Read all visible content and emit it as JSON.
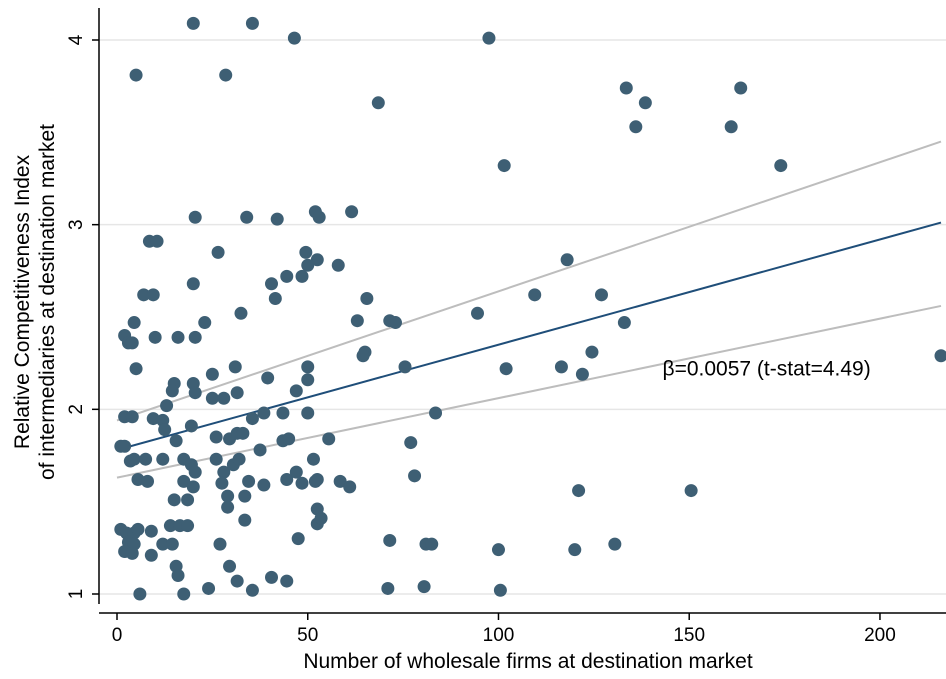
{
  "chart_data": {
    "type": "scatter",
    "title": "",
    "xlabel": "Number of wholesale firms at destination market",
    "ylabel_lines": [
      "Relative Competitiveness Index",
      "of intermediaries at destination market"
    ],
    "xlim": [
      0,
      216
    ],
    "ylim": [
      1,
      4.1
    ],
    "x_ticks": [
      0,
      50,
      100,
      150,
      200
    ],
    "y_ticks": [
      1,
      2,
      3,
      4
    ],
    "grid": "horizontal",
    "colors": {
      "points": "#3e5f74",
      "fit_line": "#1f4e79",
      "ci_lines": "#bdbdbd",
      "gridlines": "#e6e6e6",
      "axis": "#000000"
    },
    "annotation": {
      "text": "β=0.0057 (t-stat=4.49)",
      "x": 143,
      "y": 2.22
    },
    "fit": {
      "intercept": 1.78,
      "slope": 0.0057,
      "x_range": [
        0,
        216
      ]
    },
    "confidence_band": {
      "upper": [
        [
          0,
          1.94
        ],
        [
          216,
          3.45
        ]
      ],
      "lower": [
        [
          0,
          1.63
        ],
        [
          216,
          2.56
        ]
      ]
    },
    "points": [
      [
        20,
        4.09
      ],
      [
        35.5,
        4.09
      ],
      [
        46.5,
        4.01
      ],
      [
        97.5,
        4.01
      ],
      [
        5,
        3.81
      ],
      [
        28.5,
        3.81
      ],
      [
        133.5,
        3.74
      ],
      [
        163.5,
        3.74
      ],
      [
        68.5,
        3.66
      ],
      [
        138.5,
        3.66
      ],
      [
        136,
        3.53
      ],
      [
        161,
        3.53
      ],
      [
        101.5,
        3.32
      ],
      [
        174,
        3.32
      ],
      [
        52,
        3.07
      ],
      [
        61.5,
        3.07
      ],
      [
        20.5,
        3.04
      ],
      [
        34,
        3.04
      ],
      [
        42,
        3.03
      ],
      [
        53,
        3.04
      ],
      [
        8.5,
        2.91
      ],
      [
        10.5,
        2.91
      ],
      [
        26.5,
        2.85
      ],
      [
        49.5,
        2.85
      ],
      [
        52.5,
        2.81
      ],
      [
        118,
        2.81
      ],
      [
        58,
        2.78
      ],
      [
        50,
        2.78
      ],
      [
        44.5,
        2.72
      ],
      [
        48.5,
        2.72
      ],
      [
        20,
        2.68
      ],
      [
        40.5,
        2.68
      ],
      [
        7,
        2.62
      ],
      [
        9.5,
        2.62
      ],
      [
        65.5,
        2.6
      ],
      [
        109.5,
        2.62
      ],
      [
        127,
        2.62
      ],
      [
        41.5,
        2.6
      ],
      [
        32.5,
        2.52
      ],
      [
        94.5,
        2.52
      ],
      [
        4.5,
        2.47
      ],
      [
        23,
        2.47
      ],
      [
        63,
        2.48
      ],
      [
        71.5,
        2.48
      ],
      [
        73,
        2.47
      ],
      [
        133,
        2.47
      ],
      [
        2,
        2.4
      ],
      [
        3,
        2.36
      ],
      [
        4,
        2.36
      ],
      [
        10,
        2.39
      ],
      [
        16,
        2.39
      ],
      [
        20.5,
        2.39
      ],
      [
        65,
        2.31
      ],
      [
        64.5,
        2.29
      ],
      [
        124.5,
        2.31
      ],
      [
        216,
        2.29
      ],
      [
        5,
        2.22
      ],
      [
        31,
        2.23
      ],
      [
        50,
        2.23
      ],
      [
        75.5,
        2.23
      ],
      [
        116.5,
        2.23
      ],
      [
        102,
        2.22
      ],
      [
        122,
        2.19
      ],
      [
        15,
        2.14
      ],
      [
        20,
        2.14
      ],
      [
        25,
        2.19
      ],
      [
        39.5,
        2.17
      ],
      [
        50,
        2.16
      ],
      [
        14.5,
        2.1
      ],
      [
        20.5,
        2.09
      ],
      [
        31.5,
        2.09
      ],
      [
        47,
        2.1
      ],
      [
        13,
        2.02
      ],
      [
        25,
        2.06
      ],
      [
        28,
        2.06
      ],
      [
        35.5,
        1.95
      ],
      [
        38.5,
        1.98
      ],
      [
        43.5,
        1.98
      ],
      [
        50,
        1.98
      ],
      [
        83.5,
        1.98
      ],
      [
        2,
        1.96
      ],
      [
        4,
        1.96
      ],
      [
        9.5,
        1.95
      ],
      [
        12,
        1.94
      ],
      [
        12.5,
        1.89
      ],
      [
        15.5,
        1.83
      ],
      [
        19.5,
        1.91
      ],
      [
        26,
        1.85
      ],
      [
        29.5,
        1.84
      ],
      [
        31.5,
        1.87
      ],
      [
        33,
        1.87
      ],
      [
        37.5,
        1.78
      ],
      [
        43.5,
        1.83
      ],
      [
        45,
        1.84
      ],
      [
        55.5,
        1.84
      ],
      [
        77,
        1.82
      ],
      [
        1,
        1.8
      ],
      [
        2,
        1.8
      ],
      [
        3.5,
        1.72
      ],
      [
        4.5,
        1.73
      ],
      [
        7.5,
        1.73
      ],
      [
        12,
        1.73
      ],
      [
        17.5,
        1.73
      ],
      [
        19.5,
        1.7
      ],
      [
        20.5,
        1.66
      ],
      [
        26,
        1.73
      ],
      [
        28,
        1.66
      ],
      [
        30.5,
        1.7
      ],
      [
        32,
        1.73
      ],
      [
        47,
        1.66
      ],
      [
        51.5,
        1.73
      ],
      [
        78,
        1.64
      ],
      [
        5.5,
        1.62
      ],
      [
        8,
        1.61
      ],
      [
        17.5,
        1.61
      ],
      [
        20,
        1.58
      ],
      [
        27.5,
        1.6
      ],
      [
        34.5,
        1.61
      ],
      [
        38.5,
        1.59
      ],
      [
        44.5,
        1.62
      ],
      [
        48.5,
        1.6
      ],
      [
        52,
        1.61
      ],
      [
        52.5,
        1.62
      ],
      [
        58.5,
        1.61
      ],
      [
        61,
        1.58
      ],
      [
        15,
        1.51
      ],
      [
        18.5,
        1.51
      ],
      [
        29,
        1.53
      ],
      [
        33.5,
        1.53
      ],
      [
        52.5,
        1.46
      ],
      [
        121,
        1.56
      ],
      [
        150.5,
        1.56
      ],
      [
        14,
        1.37
      ],
      [
        16.5,
        1.37
      ],
      [
        18.5,
        1.37
      ],
      [
        29,
        1.47
      ],
      [
        33.5,
        1.4
      ],
      [
        52.5,
        1.38
      ],
      [
        53.5,
        1.41
      ],
      [
        1,
        1.35
      ],
      [
        2.5,
        1.33
      ],
      [
        4.5,
        1.33
      ],
      [
        5.5,
        1.35
      ],
      [
        9,
        1.34
      ],
      [
        3,
        1.28
      ],
      [
        4.5,
        1.27
      ],
      [
        12,
        1.27
      ],
      [
        14.5,
        1.27
      ],
      [
        27,
        1.27
      ],
      [
        71.5,
        1.29
      ],
      [
        47.5,
        1.3
      ],
      [
        81,
        1.27
      ],
      [
        82.5,
        1.27
      ],
      [
        130.5,
        1.27
      ],
      [
        2,
        1.23
      ],
      [
        4,
        1.22
      ],
      [
        9,
        1.21
      ],
      [
        100,
        1.24
      ],
      [
        120,
        1.24
      ],
      [
        15.5,
        1.15
      ],
      [
        29.5,
        1.15
      ],
      [
        16,
        1.1
      ],
      [
        31.5,
        1.07
      ],
      [
        40.5,
        1.09
      ],
      [
        44.5,
        1.07
      ],
      [
        24,
        1.03
      ],
      [
        71,
        1.03
      ],
      [
        80.5,
        1.04
      ],
      [
        6,
        1.0
      ],
      [
        17.5,
        1.0
      ],
      [
        35.5,
        1.02
      ],
      [
        100.5,
        1.02
      ]
    ]
  }
}
